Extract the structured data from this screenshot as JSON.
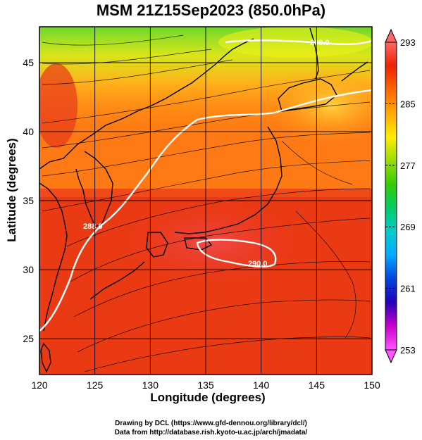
{
  "title": "MSM 21Z15Sep2023 (850.0hPa)",
  "axes": {
    "xlabel": "Longitude (degrees)",
    "ylabel": "Latitude  (degrees)",
    "xlim": [
      120,
      150
    ],
    "ylim": [
      22.4,
      47.6
    ],
    "xticks": [
      "120",
      "125",
      "130",
      "135",
      "140",
      "145",
      "150"
    ],
    "yticks": [
      "25",
      "30",
      "35",
      "40",
      "45"
    ],
    "grid": true
  },
  "colorbar": {
    "min": 253,
    "max": 293,
    "tick_labels": [
      "293",
      "285",
      "277",
      "269",
      "261",
      "253"
    ],
    "colors": [
      "#ff55ff",
      "#cc00cc",
      "#2200bb",
      "#0044dd",
      "#00aaff",
      "#00cccc",
      "#00cc66",
      "#33cc00",
      "#99dd00",
      "#ffee00",
      "#ffaa00",
      "#ff6600",
      "#ee2200",
      "#ff6666"
    ]
  },
  "contour_labels": [
    "288.0",
    "290.0",
    "288.0"
  ],
  "credits": {
    "line1": "Drawing by DCL (https://www.gfd-dennou.org/library/dcl/)",
    "line2": "Data from http://database.rish.kyoto-u.ac.jp/arch/jmadata/"
  }
}
